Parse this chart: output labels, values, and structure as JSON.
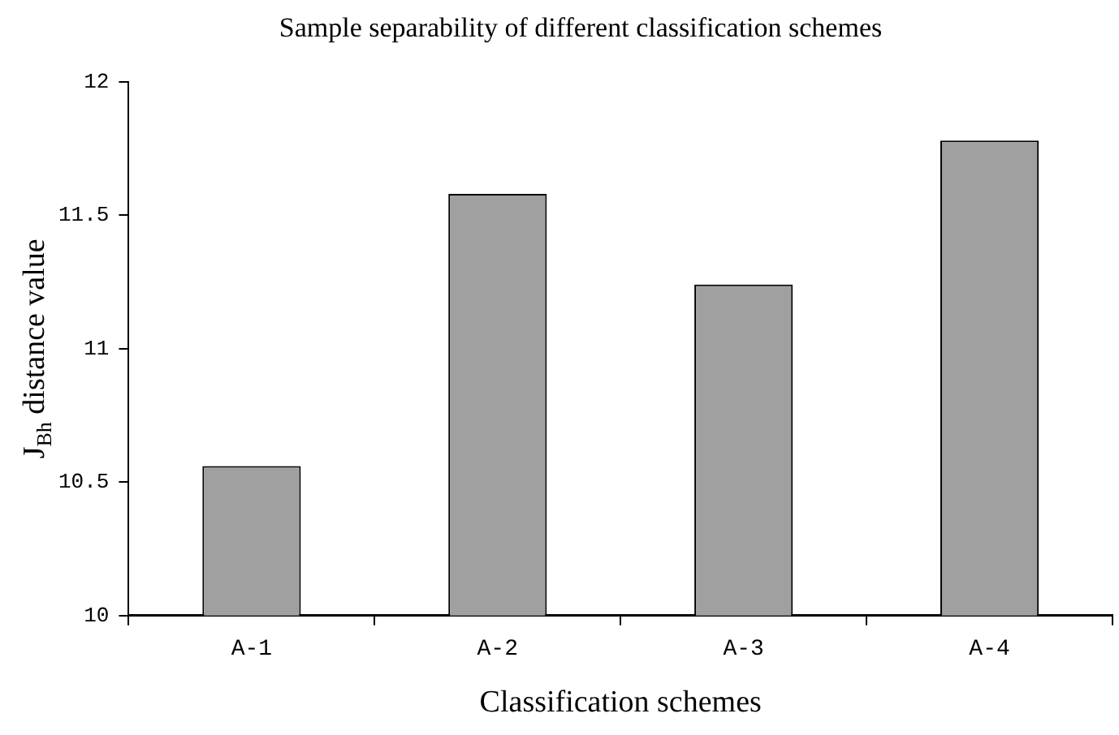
{
  "chart_data": {
    "type": "bar",
    "title": "Sample separability of different classification schemes",
    "xlabel": "Classification schemes",
    "ylabel": "J$_{Bh}$ distance value",
    "categories": [
      "A-1",
      "A-2",
      "A-3",
      "A-4"
    ],
    "values": [
      10.56,
      11.58,
      11.24,
      11.78
    ],
    "color": "#a0a0a0",
    "ylim": [
      10,
      12
    ],
    "yticks": [
      10,
      10.5,
      11,
      11.5,
      12
    ],
    "grid": false,
    "legend": false
  }
}
